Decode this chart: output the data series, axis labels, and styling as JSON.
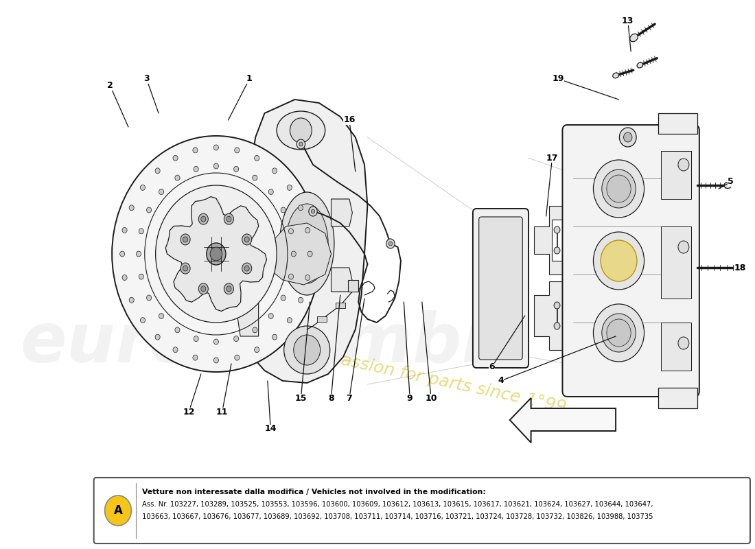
{
  "background_color": "#ffffff",
  "fig_width": 11.0,
  "fig_height": 8.0,
  "dpi": 100,
  "part_numbers_title": "Vetture non interessate dalla modifica / Vehicles not involved in the modification:",
  "part_numbers_line1": "Ass. Nr. 103227, 103289, 103525, 103553, 103596, 103600, 103609, 103612, 103613, 103615, 103617, 103621, 103624, 103627, 103644, 103647,",
  "part_numbers_line2": "103663, 103667, 103676, 103677, 103689, 103692, 103708, 103711, 103714, 103716, 103721, 103724, 103728, 103732, 103826, 103988, 103735",
  "label_A_color": "#f5c518",
  "box_border_color": "#555555",
  "lc": "#1a1a1a",
  "lc_thin": "#333333",
  "face_light": "#f8f8f8",
  "face_mid": "#eeeeee",
  "face_dark": "#dddddd",
  "watermark_euro": "#cccccc",
  "watermark_text_color": "#d4b800"
}
